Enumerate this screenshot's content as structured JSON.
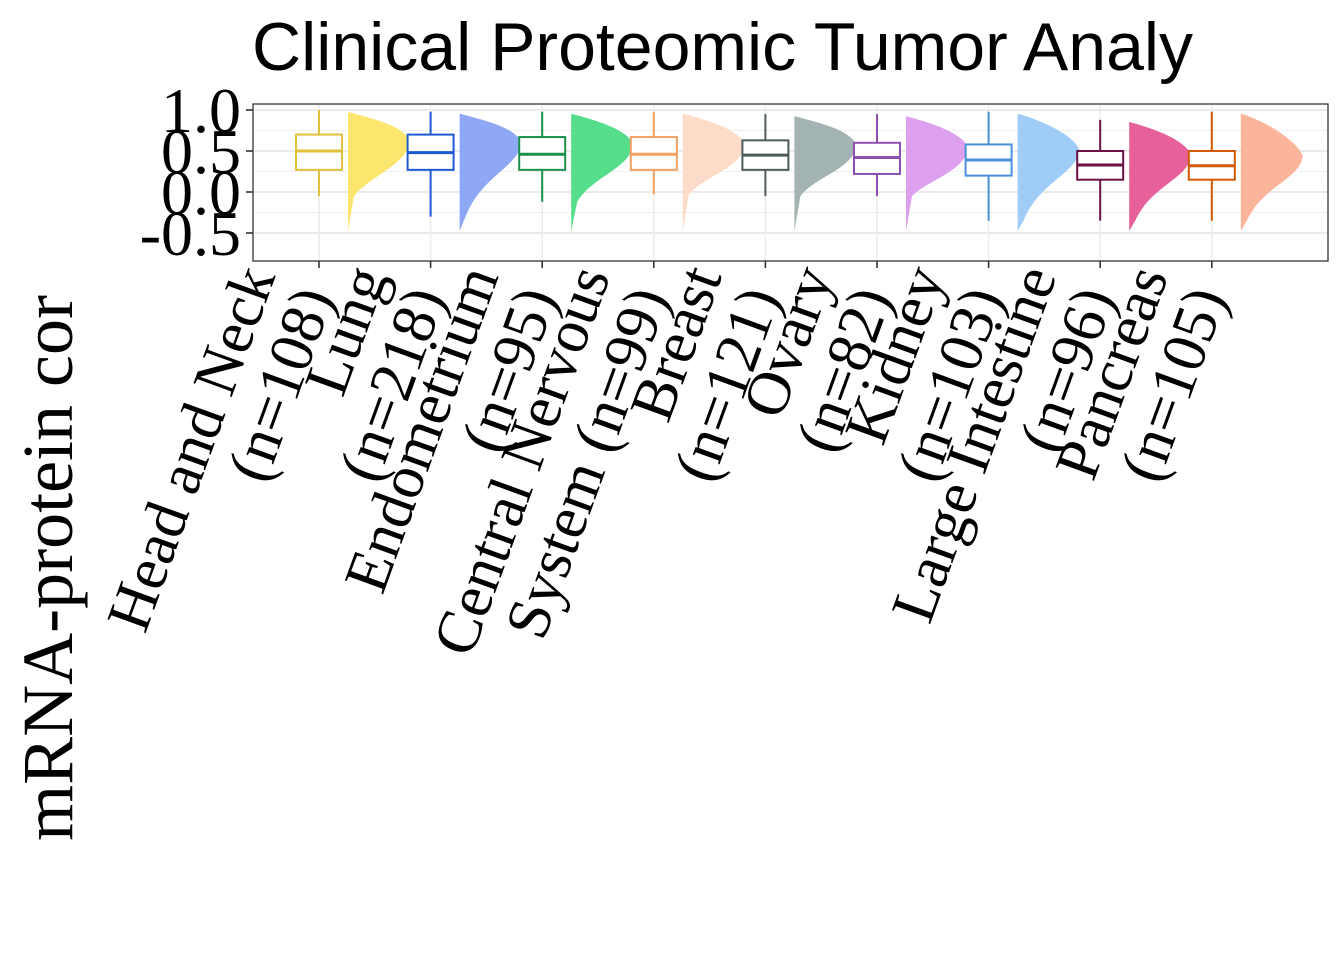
{
  "chart_data": {
    "type": "box",
    "title": "Clinical Proteomic Tumor Analy",
    "ylabel": "mRNA-protein cor",
    "xlabel": "",
    "ylim": [
      -0.5,
      1.05
    ],
    "y_ticks": [
      -0.5,
      0.0,
      0.5,
      1.0
    ],
    "y_tick_labels": [
      "-0.5",
      "0.0",
      "0.5",
      "1.0"
    ],
    "grid": true,
    "legend": "none",
    "categories": [
      {
        "label_lines": [
          "Head and Neck",
          "(n=108)"
        ],
        "color": "#E0C13A",
        "fill": "#FCE66E",
        "stats": {
          "whisker_low": -0.05,
          "q1": 0.27,
          "median": 0.5,
          "q3": 0.7,
          "whisker_high": 1.0
        }
      },
      {
        "label_lines": [
          "Lung",
          "(n=218)"
        ],
        "color": "#1E5BD1",
        "fill": "#8EA8F5",
        "stats": {
          "whisker_low": -0.3,
          "q1": 0.27,
          "median": 0.48,
          "q3": 0.7,
          "whisker_high": 0.98
        }
      },
      {
        "label_lines": [
          "Endometrium",
          "(n=95)"
        ],
        "color": "#1B8F4C",
        "fill": "#56DD8C",
        "stats": {
          "whisker_low": -0.12,
          "q1": 0.27,
          "median": 0.46,
          "q3": 0.67,
          "whisker_high": 0.98
        }
      },
      {
        "label_lines": [
          "Central Nervous",
          "System (n=99)"
        ],
        "color": "#F0A060",
        "fill": "#FCDCC8",
        "stats": {
          "whisker_low": -0.03,
          "q1": 0.27,
          "median": 0.46,
          "q3": 0.67,
          "whisker_high": 0.98
        }
      },
      {
        "label_lines": [
          "Breast",
          "(n=121)"
        ],
        "color": "#4E5B5B",
        "fill": "#A3B2B2",
        "stats": {
          "whisker_low": -0.05,
          "q1": 0.27,
          "median": 0.45,
          "q3": 0.63,
          "whisker_high": 0.95
        }
      },
      {
        "label_lines": [
          "Ovary",
          "(n=82)"
        ],
        "color": "#8E4FAE",
        "fill": "#DDA0EE",
        "stats": {
          "whisker_low": -0.05,
          "q1": 0.22,
          "median": 0.42,
          "q3": 0.6,
          "whisker_high": 0.95
        }
      },
      {
        "label_lines": [
          "Kidney",
          "(n=103)"
        ],
        "color": "#4A90D9",
        "fill": "#A0CCF8",
        "stats": {
          "whisker_low": -0.35,
          "q1": 0.2,
          "median": 0.39,
          "q3": 0.58,
          "whisker_high": 0.98
        }
      },
      {
        "label_lines": [
          "Large Intestine",
          "(n=96)"
        ],
        "color": "#6B1145",
        "fill": "#E8609A",
        "stats": {
          "whisker_low": -0.35,
          "q1": 0.15,
          "median": 0.33,
          "q3": 0.5,
          "whisker_high": 0.88
        }
      },
      {
        "label_lines": [
          "Pancreas",
          "(n=105)"
        ],
        "color": "#D25800",
        "fill": "#FCB49A",
        "stats": {
          "whisker_low": -0.35,
          "q1": 0.15,
          "median": 0.32,
          "q3": 0.5,
          "whisker_high": 0.98
        }
      }
    ]
  }
}
